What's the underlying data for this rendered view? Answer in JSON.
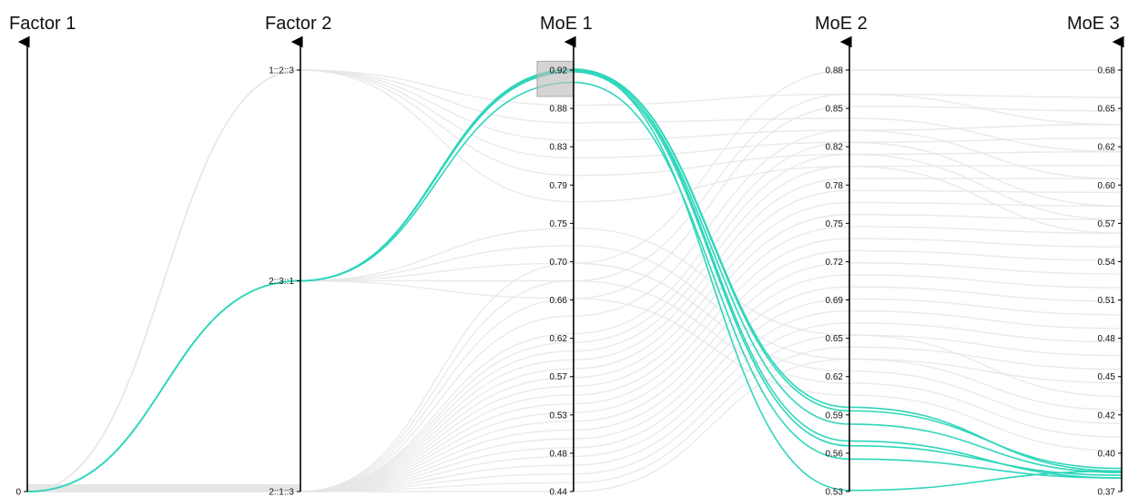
{
  "chart_data": {
    "type": "parallel-coordinates",
    "axes": [
      {
        "id": "factor1",
        "title": "Factor 1",
        "kind": "categorical",
        "ticks": [
          "0"
        ]
      },
      {
        "id": "factor2",
        "title": "Factor 2",
        "kind": "categorical",
        "ticks": [
          "2::1::3",
          "2::3::1",
          "1::2::3"
        ]
      },
      {
        "id": "moe1",
        "title": "MoE 1",
        "kind": "numeric",
        "range": [
          0.44,
          0.92
        ],
        "ticks": [
          "0.44",
          "0.48",
          "0.53",
          "0.57",
          "0.62",
          "0.66",
          "0.70",
          "0.75",
          "0.79",
          "0.83",
          "0.88",
          "0.92"
        ]
      },
      {
        "id": "moe2",
        "title": "MoE 2",
        "kind": "numeric",
        "range": [
          0.53,
          0.88
        ],
        "ticks": [
          "0.53",
          "0.56",
          "0.59",
          "0.62",
          "0.65",
          "0.69",
          "0.72",
          "0.75",
          "0.78",
          "0.82",
          "0.85",
          "0.88"
        ]
      },
      {
        "id": "moe3",
        "title": "MoE 3",
        "kind": "numeric",
        "range": [
          0.37,
          0.68
        ],
        "ticks": [
          "0.37",
          "0.40",
          "0.42",
          "0.45",
          "0.48",
          "0.51",
          "0.54",
          "0.57",
          "0.60",
          "0.62",
          "0.65",
          "0.68"
        ]
      }
    ],
    "brush": {
      "axis": "moe1",
      "range": [
        0.89,
        0.93
      ]
    },
    "highlight_color": "#2ed6bb",
    "background_line_color": "#e6e6e6",
    "highlighted_lines": [
      [
        0,
        1,
        0.921,
        0.6,
        0.385
      ],
      [
        0,
        1,
        0.921,
        0.597,
        0.387
      ],
      [
        0,
        1,
        0.919,
        0.586,
        0.384
      ],
      [
        0,
        1,
        0.921,
        0.572,
        0.38
      ],
      [
        0,
        1,
        0.918,
        0.568,
        0.382
      ],
      [
        0,
        1,
        0.906,
        0.557,
        0.38
      ],
      [
        0,
        1,
        0.92,
        0.531,
        0.385
      ]
    ],
    "background_lines": [
      [
        0,
        2,
        0.88,
        0.86,
        0.64
      ],
      [
        0,
        2,
        0.86,
        0.84,
        0.62
      ],
      [
        0,
        2,
        0.84,
        0.83,
        0.6
      ],
      [
        0,
        2,
        0.82,
        0.82,
        0.58
      ],
      [
        0,
        2,
        0.8,
        0.81,
        0.57
      ],
      [
        0,
        2,
        0.77,
        0.8,
        0.56
      ],
      [
        0,
        0,
        0.7,
        0.88,
        0.68
      ],
      [
        0,
        0,
        0.68,
        0.86,
        0.66
      ],
      [
        0,
        0,
        0.66,
        0.85,
        0.65
      ],
      [
        0,
        0,
        0.64,
        0.83,
        0.64
      ],
      [
        0,
        0,
        0.62,
        0.82,
        0.63
      ],
      [
        0,
        0,
        0.61,
        0.81,
        0.62
      ],
      [
        0,
        0,
        0.6,
        0.8,
        0.61
      ],
      [
        0,
        0,
        0.59,
        0.79,
        0.6
      ],
      [
        0,
        0,
        0.58,
        0.78,
        0.59
      ],
      [
        0,
        0,
        0.57,
        0.77,
        0.58
      ],
      [
        0,
        0,
        0.56,
        0.76,
        0.57
      ],
      [
        0,
        0,
        0.55,
        0.75,
        0.56
      ],
      [
        0,
        0,
        0.54,
        0.74,
        0.55
      ],
      [
        0,
        0,
        0.53,
        0.73,
        0.54
      ],
      [
        0,
        0,
        0.52,
        0.72,
        0.53
      ],
      [
        0,
        0,
        0.51,
        0.71,
        0.52
      ],
      [
        0,
        0,
        0.5,
        0.7,
        0.51
      ],
      [
        0,
        0,
        0.49,
        0.69,
        0.5
      ],
      [
        0,
        0,
        0.48,
        0.68,
        0.49
      ],
      [
        0,
        0,
        0.47,
        0.67,
        0.48
      ],
      [
        0,
        0,
        0.46,
        0.66,
        0.47
      ],
      [
        0,
        0,
        0.45,
        0.65,
        0.46
      ],
      [
        0,
        0,
        0.44,
        0.64,
        0.45
      ],
      [
        0,
        1,
        0.74,
        0.66,
        0.44
      ],
      [
        0,
        1,
        0.72,
        0.64,
        0.43
      ],
      [
        0,
        1,
        0.7,
        0.63,
        0.42
      ],
      [
        0,
        1,
        0.68,
        0.62,
        0.41
      ],
      [
        0,
        1,
        0.66,
        0.61,
        0.4
      ]
    ]
  }
}
